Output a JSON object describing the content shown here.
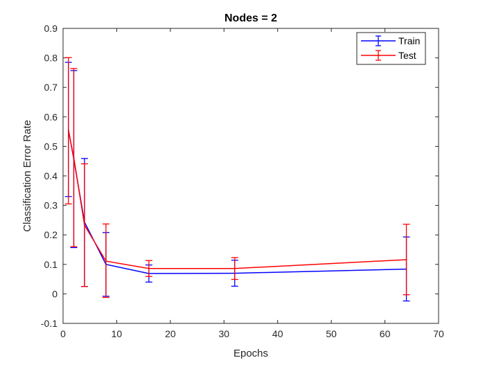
{
  "chart_data": {
    "type": "line",
    "title": "Nodes = 2",
    "xlabel": "Epochs",
    "ylabel": "Classification Error Rate",
    "xlim": [
      0,
      70
    ],
    "ylim": [
      -0.1,
      0.9
    ],
    "xticks": [
      0,
      10,
      20,
      30,
      40,
      50,
      60,
      70
    ],
    "xtick_labels": [
      "0",
      "10",
      "20",
      "30",
      "40",
      "50",
      "60",
      "70"
    ],
    "yticks": [
      -0.1,
      0,
      0.1,
      0.2,
      0.3,
      0.4,
      0.5,
      0.6,
      0.7,
      0.8,
      0.9
    ],
    "ytick_labels": [
      "-0.1",
      "0",
      "0.1",
      "0.2",
      "0.3",
      "0.4",
      "0.5",
      "0.6",
      "0.7",
      "0.8",
      "0.9"
    ],
    "grid": false,
    "legend_position": "top-right",
    "error_bars": true,
    "series": [
      {
        "name": "Train",
        "color": "#0000ff",
        "x": [
          1,
          2,
          4,
          8,
          16,
          32,
          64
        ],
        "y": [
          0.557,
          0.457,
          0.243,
          0.1,
          0.069,
          0.07,
          0.084
        ],
        "err_low": [
          0.33,
          0.157,
          0.025,
          -0.008,
          0.04,
          0.026,
          -0.024
        ],
        "err_high": [
          0.785,
          0.757,
          0.459,
          0.208,
          0.098,
          0.114,
          0.193
        ]
      },
      {
        "name": "Test",
        "color": "#ff0000",
        "x": [
          1,
          2,
          4,
          8,
          16,
          32,
          64
        ],
        "y": [
          0.553,
          0.462,
          0.233,
          0.111,
          0.086,
          0.086,
          0.116
        ],
        "err_low": [
          0.305,
          0.16,
          0.025,
          -0.012,
          0.059,
          0.049,
          -0.003
        ],
        "err_high": [
          0.801,
          0.764,
          0.441,
          0.237,
          0.113,
          0.123,
          0.236
        ]
      }
    ]
  }
}
